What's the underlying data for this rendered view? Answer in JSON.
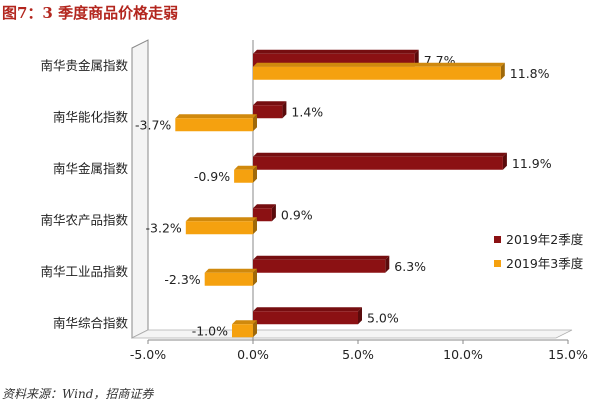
{
  "figure_title": "图7：3 季度商品价格走弱",
  "source_note": "资料来源：Wind，招商证券",
  "chart_data": {
    "type": "bar",
    "orientation": "horizontal",
    "categories": [
      "南华贵金属指数",
      "南华能化指数",
      "南华金属指数",
      "南华农产品指数",
      "南华工业品指数",
      "南华综合指数"
    ],
    "series": [
      {
        "name": "2019年2季度",
        "color": "#8b1113",
        "values": [
          7.7,
          1.4,
          11.9,
          0.9,
          6.3,
          5.0
        ],
        "labels": [
          "7.7%",
          "1.4%",
          "11.9%",
          "0.9%",
          "6.3%",
          "5.0%"
        ]
      },
      {
        "name": "2019年3季度",
        "color": "#f5a10f",
        "values": [
          11.8,
          -3.7,
          -0.9,
          -3.2,
          -2.3,
          -1.0
        ],
        "labels": [
          "11.8%",
          "-3.7%",
          "-0.9%",
          "-3.2%",
          "-2.3%",
          "-1.0%"
        ]
      }
    ],
    "xlim": [
      -5,
      15
    ],
    "x_ticks": [
      -5,
      0,
      5,
      10,
      15
    ],
    "x_tick_labels": [
      "-5.0%",
      "0.0%",
      "5.0%",
      "10.0%",
      "15.0%"
    ],
    "legend_position": "right",
    "grid": false
  }
}
